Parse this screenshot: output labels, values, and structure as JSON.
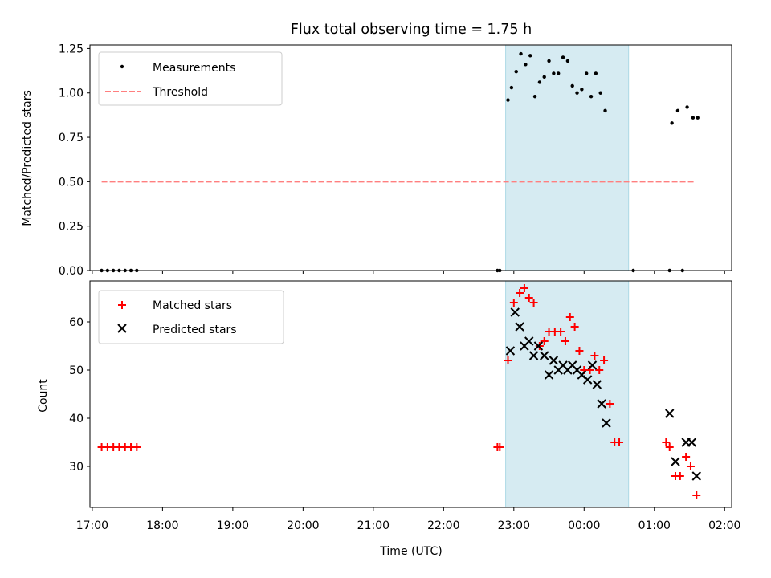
{
  "title": "Flux total observing time = 1.75 h",
  "colors": {
    "measurement": "#000000",
    "threshold": "#ff7f7f",
    "matched": "#ff0000",
    "predicted": "#000000",
    "highlight_fill": "#add8e6",
    "highlight_alpha": 0.5
  },
  "chart_data": [
    {
      "type": "scatter",
      "panel": "top",
      "ylabel": "Matched/Predicted stars",
      "ylim": [
        0,
        1.27
      ],
      "yticks": [
        0.0,
        0.25,
        0.5,
        0.75,
        1.0,
        1.25
      ],
      "ytick_labels": [
        "0.00",
        "0.25",
        "0.50",
        "0.75",
        "1.00",
        "1.25"
      ],
      "xlim": [
        "17:00",
        "02:00 (+1d)"
      ],
      "highlight_span": [
        "22:53",
        "00:38"
      ],
      "legend": {
        "position": "upper left",
        "entries": [
          "Measurements",
          "Threshold"
        ]
      },
      "threshold": {
        "name": "Threshold",
        "y": 0.5,
        "x": [
          "17:08",
          "01:35"
        ],
        "style": "dashed"
      },
      "series": [
        {
          "name": "Measurements",
          "marker": "dot",
          "points": [
            [
              "17:08",
              0.0
            ],
            [
              "17:13",
              0.0
            ],
            [
              "17:18",
              0.0
            ],
            [
              "17:23",
              0.0
            ],
            [
              "17:28",
              0.0
            ],
            [
              "17:33",
              0.0
            ],
            [
              "17:38",
              0.0
            ],
            [
              "22:46",
              0.0
            ],
            [
              "22:48",
              0.0
            ],
            [
              "22:55",
              0.96
            ],
            [
              "22:58",
              1.03
            ],
            [
              "23:02",
              1.12
            ],
            [
              "23:06",
              1.22
            ],
            [
              "23:10",
              1.16
            ],
            [
              "23:14",
              1.21
            ],
            [
              "23:18",
              0.98
            ],
            [
              "23:22",
              1.06
            ],
            [
              "23:26",
              1.09
            ],
            [
              "23:30",
              1.18
            ],
            [
              "23:34",
              1.11
            ],
            [
              "23:38",
              1.11
            ],
            [
              "23:42",
              1.2
            ],
            [
              "23:46",
              1.18
            ],
            [
              "23:50",
              1.04
            ],
            [
              "23:54",
              1.0
            ],
            [
              "23:58",
              1.02
            ],
            [
              "00:02",
              1.11
            ],
            [
              "00:06",
              0.98
            ],
            [
              "00:10",
              1.11
            ],
            [
              "00:14",
              1.0
            ],
            [
              "00:18",
              0.9
            ],
            [
              "00:42",
              0.0
            ],
            [
              "01:13",
              0.0
            ],
            [
              "01:15",
              0.83
            ],
            [
              "01:20",
              0.9
            ],
            [
              "01:24",
              0.0
            ],
            [
              "01:28",
              0.92
            ],
            [
              "01:33",
              0.86
            ],
            [
              "01:37",
              0.86
            ]
          ]
        }
      ]
    },
    {
      "type": "scatter",
      "panel": "bottom",
      "ylabel": "Count",
      "xlabel": "Time (UTC)",
      "ylim": [
        21.5,
        68.5
      ],
      "yticks": [
        30,
        40,
        50,
        60
      ],
      "ytick_labels": [
        "30",
        "40",
        "50",
        "60"
      ],
      "xticks": [
        "17:00",
        "18:00",
        "19:00",
        "20:00",
        "21:00",
        "22:00",
        "23:00",
        "00:00",
        "01:00",
        "02:00"
      ],
      "highlight_span": [
        "22:53",
        "00:38"
      ],
      "legend": {
        "position": "upper left",
        "entries": [
          "Matched stars",
          "Predicted stars"
        ]
      },
      "series": [
        {
          "name": "Matched stars",
          "marker": "plus",
          "points": [
            [
              "17:08",
              34
            ],
            [
              "17:13",
              34
            ],
            [
              "17:18",
              34
            ],
            [
              "17:23",
              34
            ],
            [
              "17:28",
              34
            ],
            [
              "17:33",
              34
            ],
            [
              "17:38",
              34
            ],
            [
              "22:46",
              34
            ],
            [
              "22:48",
              34
            ],
            [
              "22:55",
              52
            ],
            [
              "23:00",
              64
            ],
            [
              "23:05",
              66
            ],
            [
              "23:09",
              67
            ],
            [
              "23:13",
              65
            ],
            [
              "23:17",
              64
            ],
            [
              "23:22",
              55
            ],
            [
              "23:26",
              56
            ],
            [
              "23:30",
              58
            ],
            [
              "23:35",
              58
            ],
            [
              "23:40",
              58
            ],
            [
              "23:44",
              56
            ],
            [
              "23:48",
              61
            ],
            [
              "23:52",
              59
            ],
            [
              "23:56",
              54
            ],
            [
              "00:00",
              50
            ],
            [
              "00:05",
              50
            ],
            [
              "00:09",
              53
            ],
            [
              "00:13",
              50
            ],
            [
              "00:17",
              52
            ],
            [
              "00:22",
              43
            ],
            [
              "00:26",
              35
            ],
            [
              "00:30",
              35
            ],
            [
              "01:10",
              35
            ],
            [
              "01:13",
              34
            ],
            [
              "01:18",
              28
            ],
            [
              "01:22",
              28
            ],
            [
              "01:27",
              32
            ],
            [
              "01:31",
              30
            ],
            [
              "01:36",
              24
            ]
          ]
        },
        {
          "name": "Predicted stars",
          "marker": "x",
          "points": [
            [
              "22:57",
              54
            ],
            [
              "23:01",
              62
            ],
            [
              "23:05",
              59
            ],
            [
              "23:09",
              55
            ],
            [
              "23:13",
              56
            ],
            [
              "23:17",
              53
            ],
            [
              "23:21",
              55
            ],
            [
              "23:26",
              53
            ],
            [
              "23:30",
              49
            ],
            [
              "23:34",
              52
            ],
            [
              "23:38",
              50
            ],
            [
              "23:42",
              51
            ],
            [
              "23:46",
              50
            ],
            [
              "23:50",
              51
            ],
            [
              "23:54",
              50
            ],
            [
              "23:58",
              49
            ],
            [
              "00:03",
              48
            ],
            [
              "00:07",
              51
            ],
            [
              "00:11",
              47
            ],
            [
              "00:15",
              43
            ],
            [
              "00:19",
              39
            ],
            [
              "01:13",
              41
            ],
            [
              "01:18",
              31
            ],
            [
              "01:27",
              35
            ],
            [
              "01:32",
              35
            ],
            [
              "01:36",
              28
            ]
          ]
        }
      ]
    }
  ]
}
